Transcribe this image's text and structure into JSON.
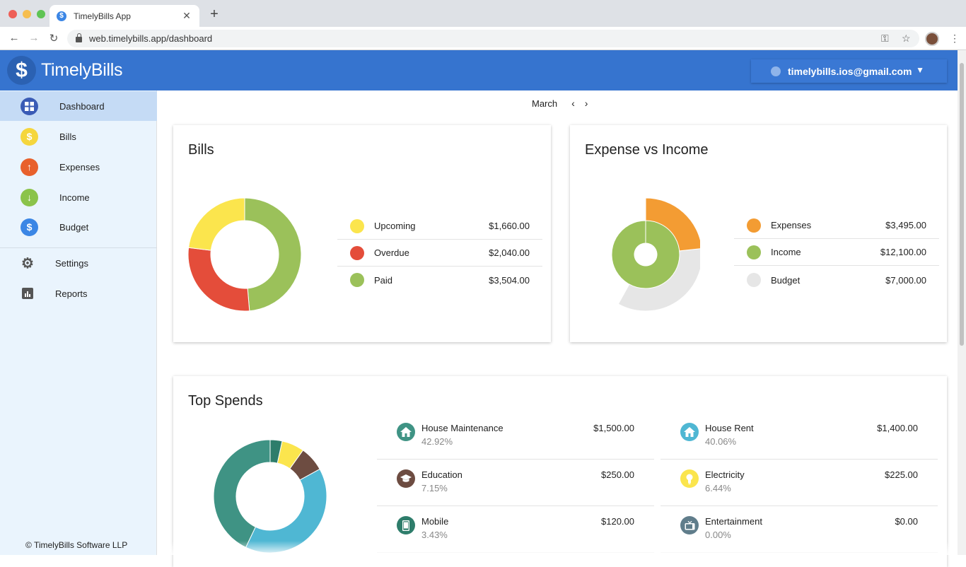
{
  "browser": {
    "tab_title": "TimelyBills App",
    "favicon": "$",
    "url": "web.timelybills.app/dashboard"
  },
  "header": {
    "logo_glyph": "$",
    "brand": "TimelyBills",
    "user_email": "timelybills.ios@gmail.com"
  },
  "sidebar": {
    "items": [
      {
        "label": "Dashboard",
        "icon": "dashboard-icon",
        "color": "#3a5bb5",
        "active": true
      },
      {
        "label": "Bills",
        "icon": "dollar-icon",
        "color": "#f5d63d"
      },
      {
        "label": "Expenses",
        "icon": "arrow-up-icon",
        "color": "#e8602c"
      },
      {
        "label": "Income",
        "icon": "arrow-down-icon",
        "color": "#8bc34a"
      },
      {
        "label": "Budget",
        "icon": "money-bag-icon",
        "color": "#3b86e5"
      }
    ],
    "secondary": [
      {
        "label": "Settings",
        "icon": "gear-icon"
      },
      {
        "label": "Reports",
        "icon": "bar-chart-icon"
      }
    ],
    "copyright": "© TimelyBills Software LLP"
  },
  "month_nav": {
    "month": "March"
  },
  "bills_card": {
    "title": "Bills",
    "items": [
      {
        "label": "Upcoming",
        "value": "$1,660.00",
        "color": "#fbe54d"
      },
      {
        "label": "Overdue",
        "value": "$2,040.00",
        "color": "#e44d3a"
      },
      {
        "label": "Paid",
        "value": "$3,504.00",
        "color": "#9bc15a"
      }
    ]
  },
  "expense_card": {
    "title": "Expense vs Income",
    "items": [
      {
        "label": "Expenses",
        "value": "$3,495.00",
        "color": "#f39c33"
      },
      {
        "label": "Income",
        "value": "$12,100.00",
        "color": "#9bc15a"
      },
      {
        "label": "Budget",
        "value": "$7,000.00",
        "color": "#e6e6e6"
      }
    ]
  },
  "top_spends": {
    "title": "Top Spends",
    "items": [
      {
        "name": "House Maintenance",
        "pct": "42.92%",
        "amount": "$1,500.00",
        "color": "#3f9384",
        "icon": "house-icon"
      },
      {
        "name": "House Rent",
        "pct": "40.06%",
        "amount": "$1,400.00",
        "color": "#4fb7d3",
        "icon": "house-icon"
      },
      {
        "name": "Education",
        "pct": "7.15%",
        "amount": "$250.00",
        "color": "#6d4c41",
        "icon": "graduation-cap-icon"
      },
      {
        "name": "Electricity",
        "pct": "6.44%",
        "amount": "$225.00",
        "color": "#fbe54d",
        "icon": "lightbulb-icon"
      },
      {
        "name": "Mobile",
        "pct": "3.43%",
        "amount": "$120.00",
        "color": "#2e7d6b",
        "icon": "phone-icon"
      },
      {
        "name": "Entertainment",
        "pct": "0.00%",
        "amount": "$0.00",
        "color": "#607d8b",
        "icon": "tv-icon"
      }
    ]
  },
  "chart_data": [
    {
      "type": "pie",
      "categories": [
        "Upcoming",
        "Overdue",
        "Paid"
      ],
      "values": [
        1660,
        2040,
        3504
      ],
      "colors": [
        "#fbe54d",
        "#e44d3a",
        "#9bc15a"
      ]
    },
    {
      "type": "pie",
      "categories": [
        "Expenses",
        "Income",
        "Budget"
      ],
      "values": [
        3495,
        12100,
        7000
      ],
      "colors": [
        "#f39c33",
        "#9bc15a",
        "#e6e6e6"
      ]
    },
    {
      "type": "pie",
      "categories": [
        "House Maintenance",
        "House Rent",
        "Education",
        "Electricity",
        "Mobile",
        "Entertainment"
      ],
      "values": [
        1500,
        1400,
        250,
        225,
        120,
        0
      ],
      "colors": [
        "#3f9384",
        "#4fb7d3",
        "#6d4c41",
        "#fbe54d",
        "#2e7d6b",
        "#607d8b"
      ]
    }
  ]
}
